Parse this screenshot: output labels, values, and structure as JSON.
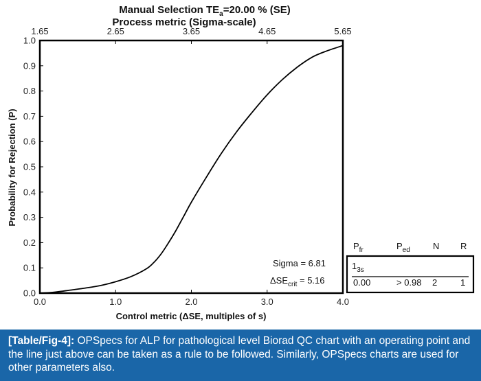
{
  "chart_data": {
    "type": "line",
    "title": "Manual Selection  TE",
    "title_sub": "a",
    "title_suffix": "=20.00 % (SE)",
    "top_axis_label": "Process metric (Sigma-scale)",
    "top_ticks": [
      "1.65",
      "2.65",
      "3.65",
      "4.65",
      "5.65"
    ],
    "xlabel": "Control metric (ΔSE, multiples of s)",
    "ylabel": "Probability for Rejection (P)",
    "xlim": [
      0,
      4
    ],
    "ylim": [
      0,
      1
    ],
    "x_ticks": [
      "0.0",
      "1.0",
      "2.0",
      "3.0",
      "4.0"
    ],
    "y_ticks": [
      "0.0",
      "0.1",
      "0.2",
      "0.3",
      "0.4",
      "0.5",
      "0.6",
      "0.7",
      "0.8",
      "0.9",
      "1.0"
    ],
    "series": [
      {
        "x": [
          0.0,
          0.2,
          0.4,
          0.6,
          0.8,
          1.0,
          1.2,
          1.4,
          1.5,
          1.6,
          1.7,
          1.8,
          1.9,
          2.0,
          2.2,
          2.4,
          2.6,
          2.8,
          3.0,
          3.2,
          3.4,
          3.6,
          3.8,
          4.0
        ],
        "y": [
          0.0,
          0.004,
          0.012,
          0.02,
          0.03,
          0.045,
          0.065,
          0.095,
          0.12,
          0.155,
          0.2,
          0.25,
          0.305,
          0.36,
          0.46,
          0.555,
          0.64,
          0.715,
          0.785,
          0.845,
          0.895,
          0.935,
          0.96,
          0.98
        ]
      }
    ],
    "sigma_label": "Sigma  =  6.81",
    "dse_prefix": "ΔSE",
    "dse_sub": "crit",
    "dse_suffix": " =  5.16",
    "table": {
      "headers": [
        {
          "main": "P",
          "sub": "fr"
        },
        {
          "main": "P",
          "sub": "ed"
        },
        {
          "main": "N",
          "sub": ""
        },
        {
          "main": "R",
          "sub": ""
        }
      ],
      "rule_main": "1",
      "rule_sub": "3s",
      "row": [
        "0.00",
        "> 0.98",
        "2",
        "1"
      ]
    }
  },
  "caption": {
    "label": "[Table/Fig-4]:",
    "text": " OPSpecs for ALP for pathological level Biorad QC chart with an operating point and the line just above can be taken as a rule to be followed. Similarly, OPSpecs charts are used for other parameters also."
  },
  "colors": {
    "caption_bg": "#1a66a8",
    "caption_text": "#ffffff",
    "line": "#000000"
  }
}
